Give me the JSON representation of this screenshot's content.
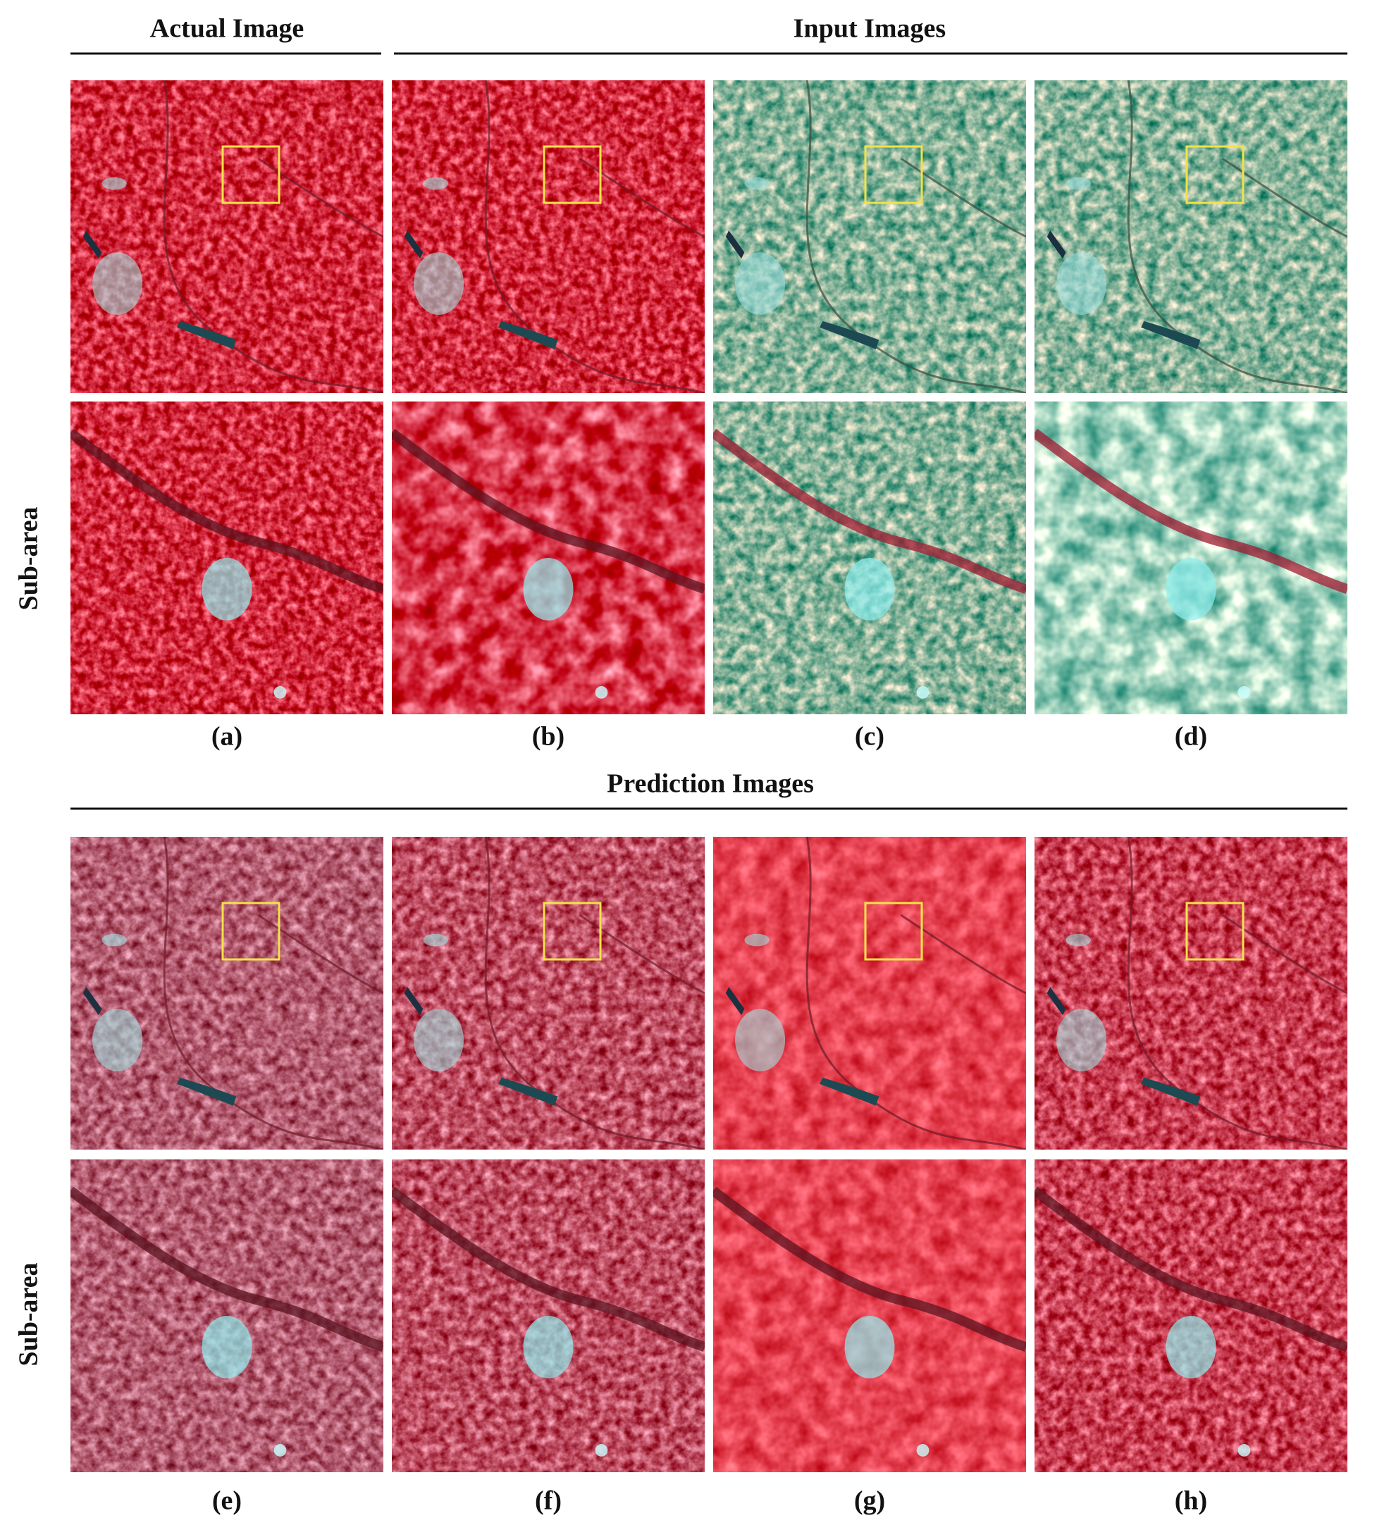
{
  "headers": {
    "actual": "Actual Image",
    "input": "Input Images",
    "prediction": "Prediction Images"
  },
  "row_labels": [
    "Sub-area",
    "Sub-area"
  ],
  "panel_labels": [
    "(a)",
    "(b)",
    "(c)",
    "(d)",
    "(e)",
    "(f)",
    "(g)",
    "(h)"
  ]
}
